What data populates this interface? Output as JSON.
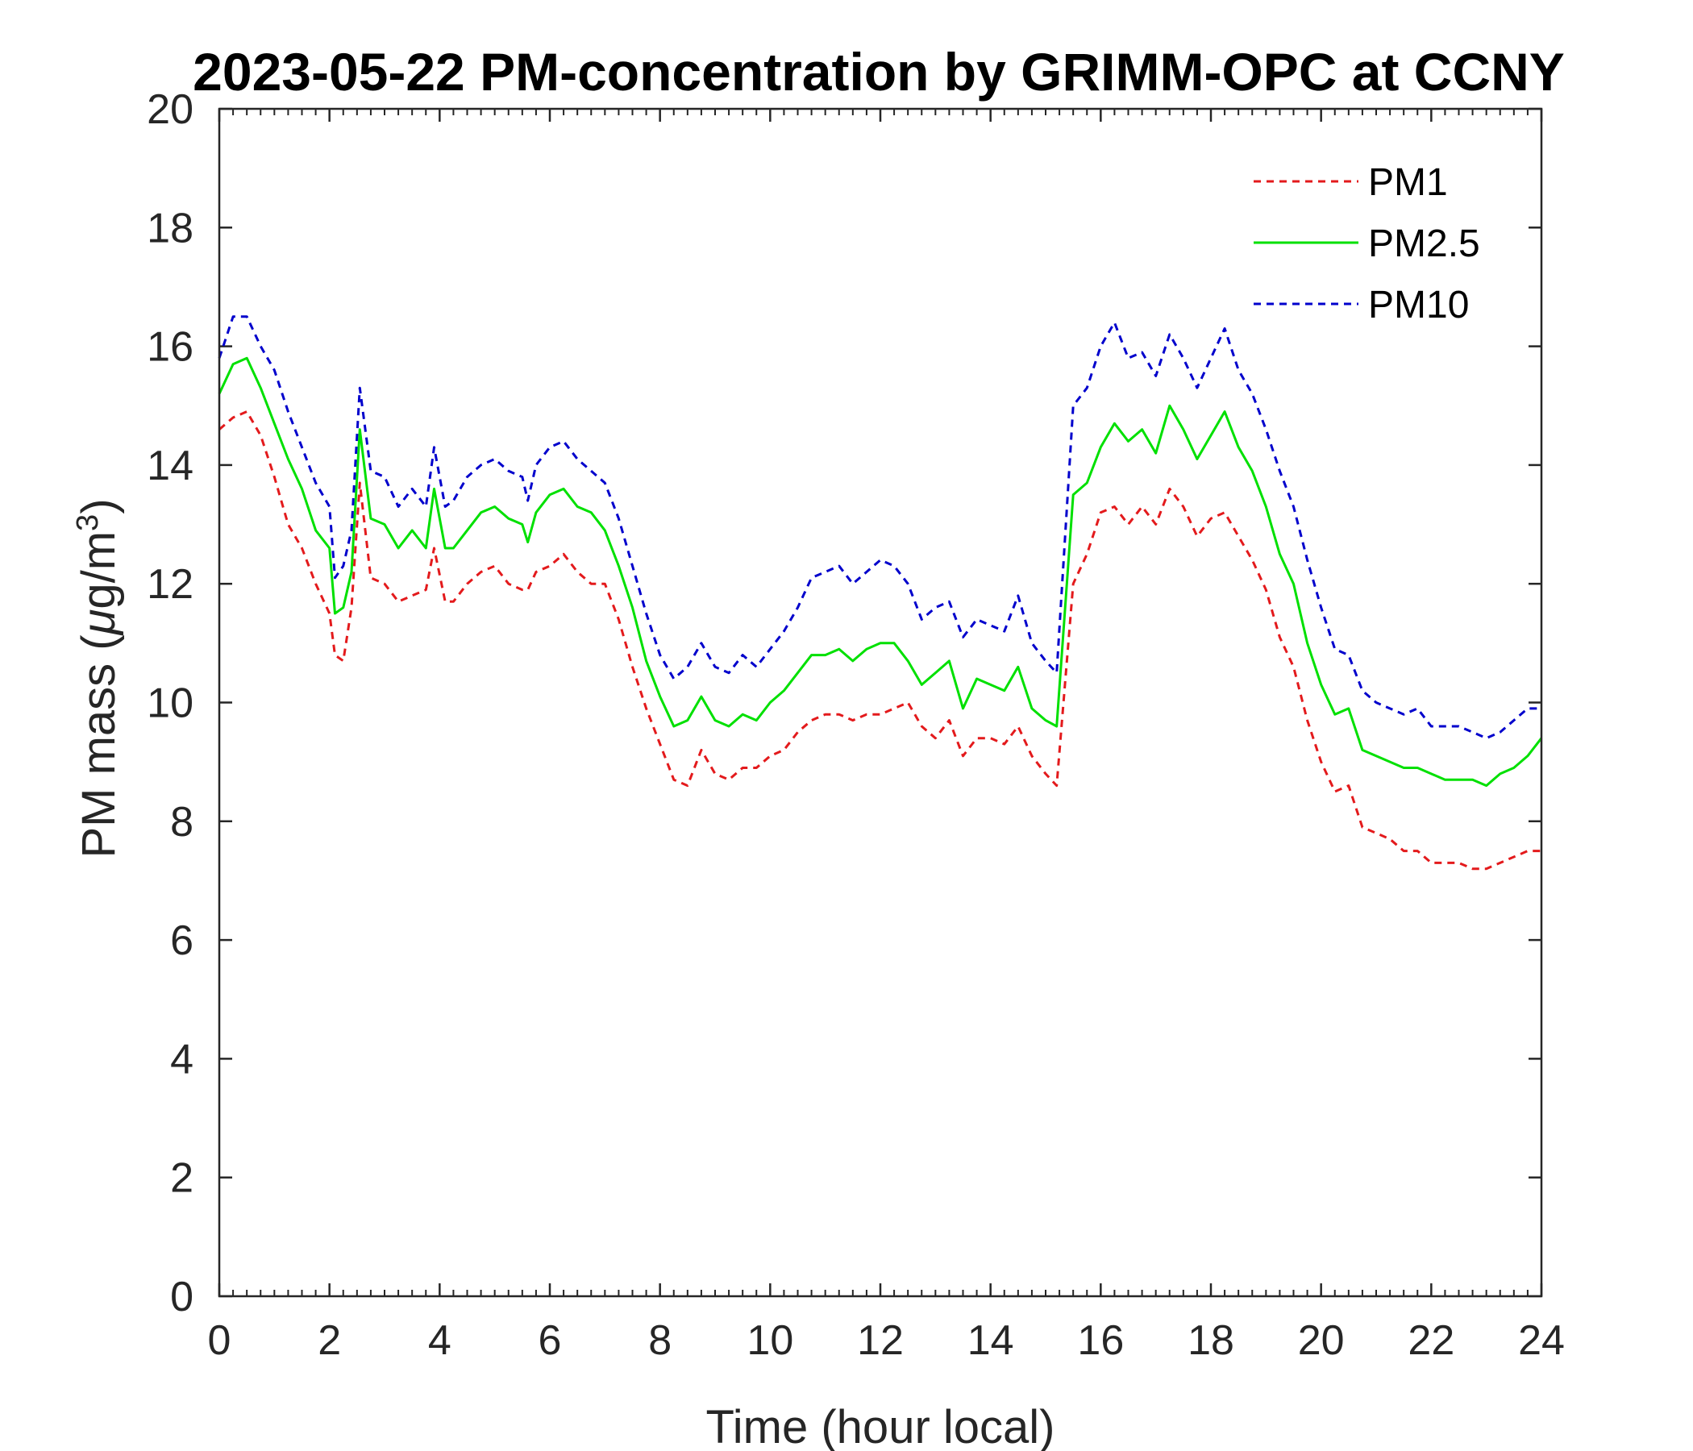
{
  "chart_data": {
    "type": "line",
    "title": "2023-05-22 PM-concentration by GRIMM-OPC at CCNY",
    "xlabel": "Time (hour local)",
    "ylabel_prefix": "PM mass (",
    "ylabel_mu": "μ",
    "ylabel_unit": "g/m",
    "ylabel_sup": "3",
    "ylabel_suffix": ")",
    "xlim": [
      0,
      24
    ],
    "ylim": [
      0,
      20
    ],
    "xticks": [
      0,
      2,
      4,
      6,
      8,
      10,
      12,
      14,
      16,
      18,
      20,
      22,
      24
    ],
    "yticks": [
      0,
      2,
      4,
      6,
      8,
      10,
      12,
      14,
      16,
      18,
      20
    ],
    "grid": false,
    "legend_position": "top-right",
    "x": [
      0.0,
      0.25,
      0.5,
      0.75,
      1.0,
      1.25,
      1.5,
      1.75,
      2.0,
      2.1,
      2.25,
      2.4,
      2.55,
      2.75,
      3.0,
      3.25,
      3.5,
      3.75,
      3.9,
      4.1,
      4.25,
      4.5,
      4.75,
      5.0,
      5.25,
      5.5,
      5.6,
      5.75,
      6.0,
      6.25,
      6.5,
      6.75,
      7.0,
      7.25,
      7.5,
      7.75,
      8.0,
      8.25,
      8.5,
      8.75,
      9.0,
      9.25,
      9.5,
      9.75,
      10.0,
      10.25,
      10.5,
      10.75,
      11.0,
      11.25,
      11.5,
      11.75,
      12.0,
      12.25,
      12.5,
      12.75,
      13.0,
      13.25,
      13.5,
      13.75,
      14.0,
      14.25,
      14.5,
      14.75,
      15.0,
      15.2,
      15.5,
      15.75,
      16.0,
      16.25,
      16.5,
      16.75,
      17.0,
      17.25,
      17.5,
      17.75,
      18.0,
      18.25,
      18.5,
      18.75,
      19.0,
      19.25,
      19.5,
      19.75,
      20.0,
      20.25,
      20.5,
      20.75,
      21.0,
      21.25,
      21.5,
      21.75,
      22.0,
      22.25,
      22.5,
      22.75,
      23.0,
      23.25,
      23.5,
      23.75,
      24.0
    ],
    "series": [
      {
        "name": "PM1",
        "color": "#e31a1c",
        "dash": "dashed",
        "values": [
          14.6,
          14.8,
          14.9,
          14.5,
          13.8,
          13.0,
          12.6,
          12.0,
          11.5,
          10.8,
          10.7,
          11.6,
          13.7,
          12.1,
          12.0,
          11.7,
          11.8,
          11.9,
          12.6,
          11.7,
          11.7,
          12.0,
          12.2,
          12.3,
          12.0,
          11.9,
          11.9,
          12.2,
          12.3,
          12.5,
          12.2,
          12.0,
          12.0,
          11.4,
          10.6,
          9.9,
          9.3,
          8.7,
          8.6,
          9.2,
          8.8,
          8.7,
          8.9,
          8.9,
          9.1,
          9.2,
          9.5,
          9.7,
          9.8,
          9.8,
          9.7,
          9.8,
          9.8,
          9.9,
          10.0,
          9.6,
          9.4,
          9.7,
          9.1,
          9.4,
          9.4,
          9.3,
          9.6,
          9.1,
          8.8,
          8.6,
          12.0,
          12.5,
          13.2,
          13.3,
          13.0,
          13.3,
          13.0,
          13.6,
          13.3,
          12.8,
          13.1,
          13.2,
          12.8,
          12.4,
          11.9,
          11.1,
          10.6,
          9.7,
          9.0,
          8.5,
          8.6,
          7.9,
          7.8,
          7.7,
          7.5,
          7.5,
          7.3,
          7.3,
          7.3,
          7.2,
          7.2,
          7.3,
          7.4,
          7.5,
          7.5
        ]
      },
      {
        "name": "PM2.5",
        "color": "#00e000",
        "dash": "solid",
        "values": [
          15.2,
          15.7,
          15.8,
          15.3,
          14.7,
          14.1,
          13.6,
          12.9,
          12.6,
          11.5,
          11.6,
          12.2,
          14.6,
          13.1,
          13.0,
          12.6,
          12.9,
          12.6,
          13.6,
          12.6,
          12.6,
          12.9,
          13.2,
          13.3,
          13.1,
          13.0,
          12.7,
          13.2,
          13.5,
          13.6,
          13.3,
          13.2,
          12.9,
          12.3,
          11.6,
          10.7,
          10.1,
          9.6,
          9.7,
          10.1,
          9.7,
          9.6,
          9.8,
          9.7,
          10.0,
          10.2,
          10.5,
          10.8,
          10.8,
          10.9,
          10.7,
          10.9,
          11.0,
          11.0,
          10.7,
          10.3,
          10.5,
          10.7,
          9.9,
          10.4,
          10.3,
          10.2,
          10.6,
          9.9,
          9.7,
          9.6,
          13.5,
          13.7,
          14.3,
          14.7,
          14.4,
          14.6,
          14.2,
          15.0,
          14.6,
          14.1,
          14.5,
          14.9,
          14.3,
          13.9,
          13.3,
          12.5,
          12.0,
          11.0,
          10.3,
          9.8,
          9.9,
          9.2,
          9.1,
          9.0,
          8.9,
          8.9,
          8.8,
          8.7,
          8.7,
          8.7,
          8.6,
          8.8,
          8.9,
          9.1,
          9.4
        ]
      },
      {
        "name": "PM10",
        "color": "#0000cc",
        "dash": "dashed",
        "values": [
          15.8,
          16.5,
          16.5,
          16.0,
          15.6,
          14.9,
          14.3,
          13.7,
          13.3,
          12.1,
          12.3,
          12.9,
          15.3,
          13.9,
          13.8,
          13.3,
          13.6,
          13.3,
          14.3,
          13.3,
          13.4,
          13.8,
          14.0,
          14.1,
          13.9,
          13.8,
          13.4,
          14.0,
          14.3,
          14.4,
          14.1,
          13.9,
          13.7,
          13.1,
          12.3,
          11.5,
          10.8,
          10.4,
          10.6,
          11.0,
          10.6,
          10.5,
          10.8,
          10.6,
          10.9,
          11.2,
          11.6,
          12.1,
          12.2,
          12.3,
          12.0,
          12.2,
          12.4,
          12.3,
          12.0,
          11.4,
          11.6,
          11.7,
          11.1,
          11.4,
          11.3,
          11.2,
          11.8,
          11.0,
          10.7,
          10.5,
          15.0,
          15.3,
          16.0,
          16.4,
          15.8,
          15.9,
          15.5,
          16.2,
          15.8,
          15.3,
          15.8,
          16.3,
          15.6,
          15.2,
          14.6,
          13.9,
          13.3,
          12.4,
          11.6,
          10.9,
          10.8,
          10.2,
          10.0,
          9.9,
          9.8,
          9.9,
          9.6,
          9.6,
          9.6,
          9.5,
          9.4,
          9.5,
          9.7,
          9.9,
          9.9
        ]
      }
    ]
  }
}
